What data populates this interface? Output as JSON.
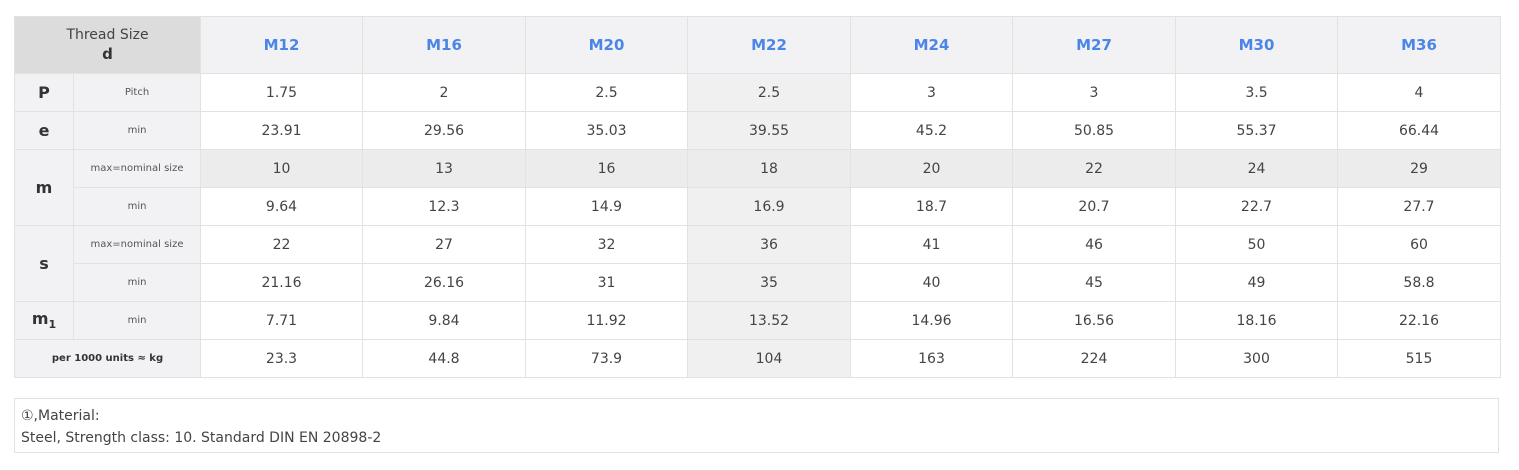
{
  "table": {
    "corner_title": "Thread Size",
    "corner_sub": "d",
    "sizes": [
      "M12",
      "M16",
      "M20",
      "M22",
      "M24",
      "M27",
      "M30",
      "M36"
    ],
    "rows": [
      {
        "symbol": "P",
        "sub": "",
        "cond": "Pitch",
        "values": [
          "1.75",
          "2",
          "2.5",
          "2.5",
          "3",
          "3",
          "3.5",
          "4"
        ]
      },
      {
        "symbol": "e",
        "sub": "",
        "cond": "min",
        "values": [
          "23.91",
          "29.56",
          "35.03",
          "39.55",
          "45.2",
          "50.85",
          "55.37",
          "66.44"
        ]
      },
      {
        "symbol": "m",
        "sub": "",
        "cond": "max=nominal size",
        "values": [
          "10",
          "13",
          "16",
          "18",
          "20",
          "22",
          "24",
          "29"
        ]
      },
      {
        "symbol": "",
        "sub": "",
        "cond": "min",
        "values": [
          "9.64",
          "12.3",
          "14.9",
          "16.9",
          "18.7",
          "20.7",
          "22.7",
          "27.7"
        ]
      },
      {
        "symbol": "s",
        "sub": "",
        "cond": "max=nominal size",
        "values": [
          "22",
          "27",
          "32",
          "36",
          "41",
          "46",
          "50",
          "60"
        ]
      },
      {
        "symbol": "",
        "sub": "",
        "cond": "min",
        "values": [
          "21.16",
          "26.16",
          "31",
          "35",
          "40",
          "45",
          "49",
          "58.8"
        ]
      },
      {
        "symbol": "m",
        "sub": "1",
        "cond": "min",
        "values": [
          "7.71",
          "9.84",
          "11.92",
          "13.52",
          "14.96",
          "16.56",
          "18.16",
          "22.16"
        ]
      }
    ],
    "weight": {
      "label": "per 1000 units ≈ kg",
      "values": [
        "23.3",
        "44.8",
        "73.9",
        "104",
        "163",
        "224",
        "300",
        "515"
      ]
    }
  },
  "note": {
    "line1": "①,Material:",
    "line2": "Steel, Strength class: 10. Standard DIN EN 20898-2"
  }
}
